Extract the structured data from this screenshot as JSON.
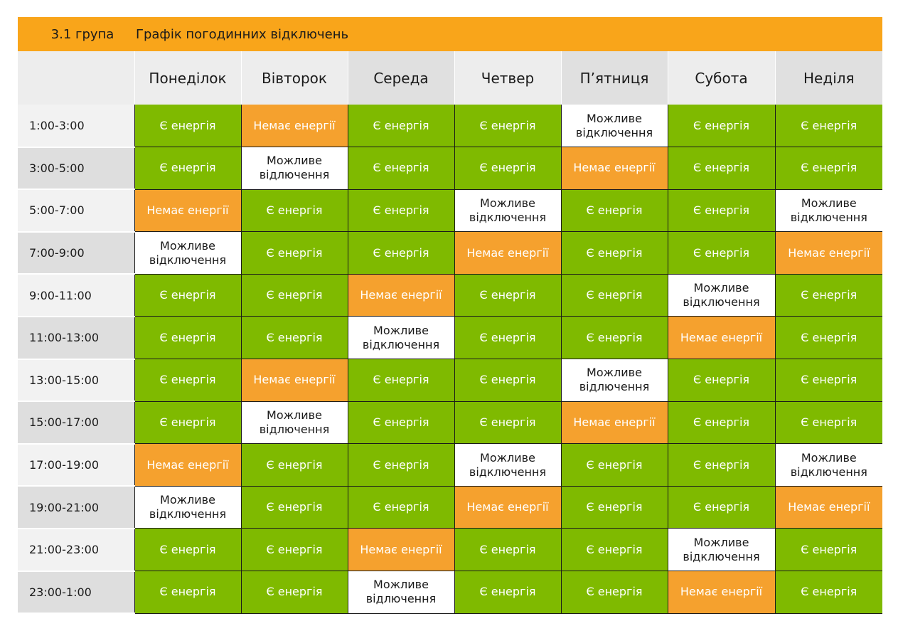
{
  "title": {
    "group": "3.1 група",
    "schedule": "Графік погодинних відключень"
  },
  "days": [
    "Понеділок",
    "Вівторок",
    "Середа",
    "Четвер",
    "П’ятниця",
    "Субота",
    "Неділя"
  ],
  "status_labels": {
    "on": "Є енергія",
    "off": "Немає енергії",
    "maybe": "Можливе відключення"
  },
  "colors": {
    "on": "#7fba00",
    "off": "#f5a12e",
    "maybe": "#ffffff",
    "title_bar": "#f9a51a"
  },
  "rows": [
    {
      "time": "1:00-3:00",
      "cells": [
        "on",
        "off",
        "on",
        "on",
        "maybe",
        "on",
        "on"
      ]
    },
    {
      "time": "3:00-5:00",
      "cells": [
        "on",
        "maybe_v",
        "on",
        "on",
        "off",
        "on",
        "on"
      ]
    },
    {
      "time": "5:00-7:00",
      "cells": [
        "off",
        "on",
        "on",
        "maybe",
        "on",
        "on",
        "maybe"
      ]
    },
    {
      "time": "7:00-9:00",
      "cells": [
        "maybe",
        "on",
        "on",
        "off",
        "on",
        "on",
        "off"
      ]
    },
    {
      "time": "9:00-11:00",
      "cells": [
        "on",
        "on",
        "off",
        "on",
        "on",
        "maybe",
        "on"
      ]
    },
    {
      "time": "11:00-13:00",
      "cells": [
        "on",
        "on",
        "maybe",
        "on",
        "on",
        "off",
        "on"
      ]
    },
    {
      "time": "13:00-15:00",
      "cells": [
        "on",
        "off",
        "on",
        "on",
        "maybe_v",
        "on",
        "on"
      ]
    },
    {
      "time": "15:00-17:00",
      "cells": [
        "on",
        "maybe_v",
        "on",
        "on",
        "off",
        "on",
        "on"
      ]
    },
    {
      "time": "17:00-19:00",
      "cells": [
        "off",
        "on",
        "on",
        "maybe",
        "on",
        "on",
        "maybe"
      ]
    },
    {
      "time": "19:00-21:00",
      "cells": [
        "maybe",
        "on",
        "on",
        "off",
        "on",
        "on",
        "off"
      ]
    },
    {
      "time": "21:00-23:00",
      "cells": [
        "on",
        "on",
        "off",
        "on",
        "on",
        "maybe",
        "on"
      ]
    },
    {
      "time": "23:00-1:00",
      "cells": [
        "on",
        "on",
        "maybe_v",
        "on",
        "on",
        "off",
        "on"
      ]
    }
  ],
  "alt_labels": {
    "maybe_v": "Можливе відлючення"
  }
}
